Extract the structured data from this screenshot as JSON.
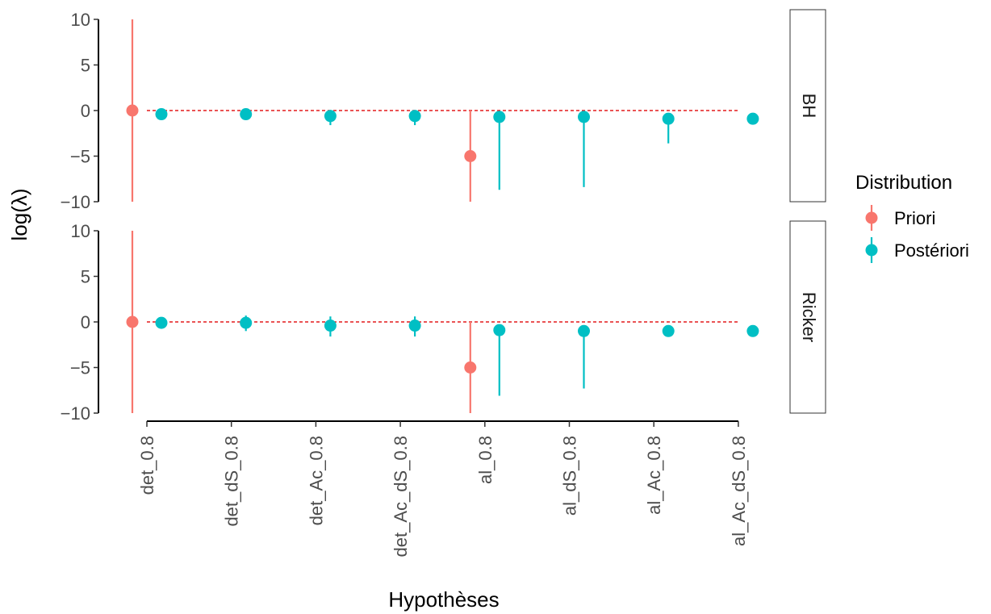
{
  "chart_data": {
    "type": "scatter",
    "xlabel": "Hypothèses",
    "ylabel": "log(λ)",
    "ylim": [
      -10,
      10
    ],
    "yticks": [
      10,
      5,
      0,
      -5,
      -10
    ],
    "ytick_labels": [
      "10",
      "5",
      "0",
      "−5",
      "−10"
    ],
    "categories": [
      "det_0.8",
      "det_dS_0.8",
      "det_Ac_0.8",
      "det_Ac_dS_0.8",
      "al_0.8",
      "al_dS_0.8",
      "al_Ac_0.8",
      "al_Ac_dS_0.8"
    ],
    "reference_line": {
      "y": 0,
      "style": "dashed",
      "color": "#e41a1c"
    },
    "legend": {
      "title": "Distribution",
      "position": "right"
    },
    "grid": false,
    "facets": [
      "BH",
      "Ricker"
    ],
    "series": [
      {
        "name": "Priori",
        "color": "#F8766D",
        "points": [
          {
            "facet": "BH",
            "category": "det_0.8",
            "y": 0,
            "low": -10,
            "high": 10
          },
          {
            "facet": "BH",
            "category": "al_0.8",
            "y": -5,
            "low": -10,
            "high": 0
          },
          {
            "facet": "Ricker",
            "category": "det_0.8",
            "y": 0,
            "low": -10,
            "high": 10
          },
          {
            "facet": "Ricker",
            "category": "al_0.8",
            "y": -5,
            "low": -10,
            "high": 0
          }
        ]
      },
      {
        "name": "Postériori",
        "color": "#00BFC4",
        "points": [
          {
            "facet": "BH",
            "category": "det_0.8",
            "y": -0.4,
            "low": -0.5,
            "high": -0.3
          },
          {
            "facet": "BH",
            "category": "det_dS_0.8",
            "y": -0.4,
            "low": -0.5,
            "high": -0.3
          },
          {
            "facet": "BH",
            "category": "det_Ac_0.8",
            "y": -0.6,
            "low": -1.6,
            "high": -0.2
          },
          {
            "facet": "BH",
            "category": "det_Ac_dS_0.8",
            "y": -0.6,
            "low": -1.6,
            "high": -0.2
          },
          {
            "facet": "BH",
            "category": "al_0.8",
            "y": -0.7,
            "low": -8.7,
            "high": -0.6
          },
          {
            "facet": "BH",
            "category": "al_dS_0.8",
            "y": -0.7,
            "low": -8.4,
            "high": -0.6
          },
          {
            "facet": "BH",
            "category": "al_Ac_0.8",
            "y": -0.9,
            "low": -3.6,
            "high": -0.8
          },
          {
            "facet": "BH",
            "category": "al_Ac_dS_0.8",
            "y": -0.9,
            "low": -1.0,
            "high": -0.8
          },
          {
            "facet": "Ricker",
            "category": "det_0.8",
            "y": -0.1,
            "low": -0.6,
            "high": 0.5
          },
          {
            "facet": "Ricker",
            "category": "det_dS_0.8",
            "y": -0.1,
            "low": -1.0,
            "high": 0.7
          },
          {
            "facet": "Ricker",
            "category": "det_Ac_0.8",
            "y": -0.4,
            "low": -1.6,
            "high": 0.6
          },
          {
            "facet": "Ricker",
            "category": "det_Ac_dS_0.8",
            "y": -0.4,
            "low": -1.6,
            "high": 0.6
          },
          {
            "facet": "Ricker",
            "category": "al_0.8",
            "y": -0.9,
            "low": -8.1,
            "high": -0.8
          },
          {
            "facet": "Ricker",
            "category": "al_dS_0.8",
            "y": -1.0,
            "low": -7.3,
            "high": -0.9
          },
          {
            "facet": "Ricker",
            "category": "al_Ac_0.8",
            "y": -1.0,
            "low": -1.1,
            "high": -0.9
          },
          {
            "facet": "Ricker",
            "category": "al_Ac_dS_0.8",
            "y": -1.0,
            "low": -1.1,
            "high": -0.9
          }
        ]
      }
    ]
  }
}
